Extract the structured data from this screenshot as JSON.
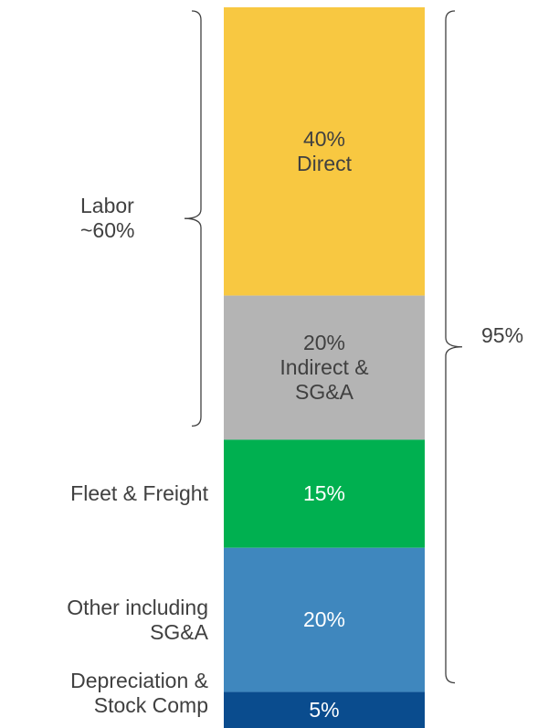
{
  "chart_data": {
    "type": "stacked_bar",
    "series": [
      {
        "name": "Direct",
        "color": "#F8C841",
        "label_color": "#404040",
        "label_position": "inside",
        "values": [
          40
        ],
        "value_labels": [
          "40%"
        ]
      },
      {
        "name": "Indirect & SG&A",
        "color": "#B4B4B4",
        "label_color": "#404040",
        "label_position": "inside",
        "values": [
          20
        ],
        "value_labels": [
          "20%"
        ]
      },
      {
        "name": "Fleet & Freight",
        "color": "#00B050",
        "label_color": "#ffffff",
        "label_position": "left",
        "values": [
          15
        ],
        "value_labels": [
          "15%"
        ]
      },
      {
        "name": "Other including SG&A",
        "color": "#3F87BE",
        "label_color": "#ffffff",
        "label_position": "left",
        "values": [
          20
        ],
        "value_labels": [
          "20%"
        ]
      },
      {
        "name": "Depreciation & Stock Comp",
        "color": "#0A4C8E",
        "label_color": "#ffffff",
        "label_position": "left",
        "values": [
          5
        ],
        "value_labels": [
          "5%"
        ]
      }
    ],
    "annotations": [
      "Labor ~60%",
      "95%"
    ]
  }
}
